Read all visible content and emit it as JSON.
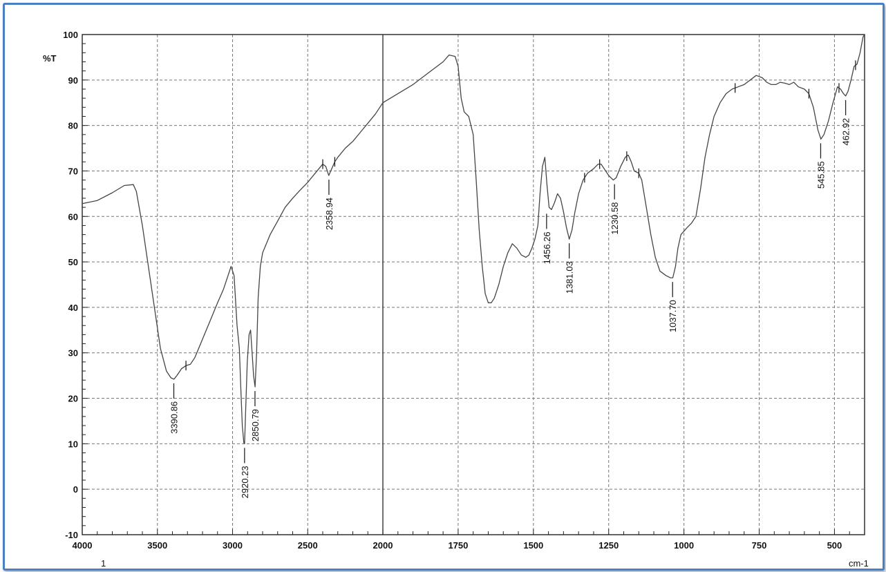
{
  "chart_data": {
    "type": "line",
    "ylabel": "%T",
    "xlabel": "cm-1",
    "x_corner_label": "1",
    "xlim": [
      4000,
      400
    ],
    "ylim": [
      -10,
      100
    ],
    "x_ticks": [
      4000,
      3500,
      3000,
      2500,
      2000,
      1750,
      1500,
      1250,
      1000,
      750,
      500
    ],
    "y_ticks": [
      -10,
      0,
      10,
      20,
      30,
      40,
      50,
      60,
      70,
      80,
      90,
      100
    ],
    "grid": true,
    "line_color": "#444444",
    "series": [
      {
        "points": [
          [
            4000,
            62.8
          ],
          [
            3900,
            63.5
          ],
          [
            3800,
            65.2
          ],
          [
            3720,
            66.8
          ],
          [
            3660,
            67.0
          ],
          [
            3640,
            65.5
          ],
          [
            3600,
            58
          ],
          [
            3560,
            49
          ],
          [
            3520,
            40
          ],
          [
            3480,
            31
          ],
          [
            3440,
            26
          ],
          [
            3410,
            24.5
          ],
          [
            3390,
            24.2
          ],
          [
            3370,
            25
          ],
          [
            3340,
            26.5
          ],
          [
            3310,
            27.2
          ],
          [
            3280,
            27.5
          ],
          [
            3250,
            29
          ],
          [
            3200,
            33
          ],
          [
            3150,
            37
          ],
          [
            3100,
            41
          ],
          [
            3060,
            44
          ],
          [
            3030,
            47
          ],
          [
            3010,
            49
          ],
          [
            2990,
            47
          ],
          [
            2970,
            36
          ],
          [
            2955,
            31
          ],
          [
            2945,
            22
          ],
          [
            2935,
            14
          ],
          [
            2925,
            10.2
          ],
          [
            2920,
            10
          ],
          [
            2912,
            18
          ],
          [
            2902,
            28
          ],
          [
            2890,
            34
          ],
          [
            2880,
            35
          ],
          [
            2870,
            30
          ],
          [
            2860,
            25
          ],
          [
            2850,
            22.5
          ],
          [
            2840,
            30
          ],
          [
            2830,
            42
          ],
          [
            2815,
            49
          ],
          [
            2800,
            52
          ],
          [
            2750,
            56
          ],
          [
            2700,
            59
          ],
          [
            2650,
            62
          ],
          [
            2600,
            64
          ],
          [
            2550,
            65.8
          ],
          [
            2500,
            67.5
          ],
          [
            2450,
            69.5
          ],
          [
            2400,
            71.5
          ],
          [
            2380,
            71
          ],
          [
            2360,
            69
          ],
          [
            2340,
            70.5
          ],
          [
            2320,
            72
          ],
          [
            2300,
            73
          ],
          [
            2250,
            75
          ],
          [
            2200,
            76.5
          ],
          [
            2150,
            78.5
          ],
          [
            2100,
            80.5
          ],
          [
            2050,
            82.5
          ],
          [
            2000,
            85
          ],
          [
            1950,
            87
          ],
          [
            1900,
            89
          ],
          [
            1850,
            91.5
          ],
          [
            1800,
            94
          ],
          [
            1780,
            95.5
          ],
          [
            1760,
            95.2
          ],
          [
            1750,
            93
          ],
          [
            1740,
            86
          ],
          [
            1730,
            83
          ],
          [
            1715,
            82
          ],
          [
            1700,
            78
          ],
          [
            1690,
            68
          ],
          [
            1680,
            57
          ],
          [
            1670,
            49
          ],
          [
            1660,
            43
          ],
          [
            1650,
            41
          ],
          [
            1640,
            41
          ],
          [
            1630,
            42
          ],
          [
            1615,
            45
          ],
          [
            1600,
            49
          ],
          [
            1585,
            52
          ],
          [
            1570,
            54
          ],
          [
            1555,
            53
          ],
          [
            1540,
            51.5
          ],
          [
            1525,
            51
          ],
          [
            1515,
            51.5
          ],
          [
            1505,
            53
          ],
          [
            1495,
            55
          ],
          [
            1485,
            58
          ],
          [
            1478,
            65
          ],
          [
            1470,
            71
          ],
          [
            1462,
            73
          ],
          [
            1455,
            67
          ],
          [
            1448,
            62
          ],
          [
            1440,
            61.5
          ],
          [
            1430,
            63
          ],
          [
            1420,
            65
          ],
          [
            1410,
            64
          ],
          [
            1400,
            61
          ],
          [
            1390,
            57.5
          ],
          [
            1381,
            55
          ],
          [
            1372,
            57
          ],
          [
            1362,
            61
          ],
          [
            1350,
            65
          ],
          [
            1335,
            68
          ],
          [
            1320,
            69.5
          ],
          [
            1300,
            70.5
          ],
          [
            1285,
            71.5
          ],
          [
            1275,
            71.5
          ],
          [
            1265,
            70.5
          ],
          [
            1250,
            69
          ],
          [
            1235,
            68
          ],
          [
            1225,
            68.5
          ],
          [
            1210,
            71
          ],
          [
            1195,
            73
          ],
          [
            1185,
            73.5
          ],
          [
            1175,
            72
          ],
          [
            1165,
            70
          ],
          [
            1150,
            69.5
          ],
          [
            1140,
            68
          ],
          [
            1125,
            62
          ],
          [
            1110,
            56
          ],
          [
            1095,
            51
          ],
          [
            1080,
            48
          ],
          [
            1060,
            47
          ],
          [
            1045,
            46.5
          ],
          [
            1037,
            46.5
          ],
          [
            1028,
            49
          ],
          [
            1020,
            53
          ],
          [
            1010,
            56
          ],
          [
            990,
            57.5
          ],
          [
            975,
            58.5
          ],
          [
            960,
            60
          ],
          [
            945,
            66
          ],
          [
            930,
            73
          ],
          [
            915,
            78
          ],
          [
            900,
            82
          ],
          [
            880,
            85
          ],
          [
            860,
            87
          ],
          [
            840,
            88
          ],
          [
            820,
            88.5
          ],
          [
            800,
            89
          ],
          [
            780,
            90
          ],
          [
            760,
            91
          ],
          [
            740,
            90.5
          ],
          [
            725,
            89.5
          ],
          [
            710,
            89
          ],
          [
            695,
            89
          ],
          [
            680,
            89.5
          ],
          [
            665,
            89.3
          ],
          [
            650,
            89
          ],
          [
            635,
            89.5
          ],
          [
            620,
            88.5
          ],
          [
            600,
            88
          ],
          [
            585,
            87
          ],
          [
            570,
            84
          ],
          [
            555,
            79
          ],
          [
            545,
            77
          ],
          [
            535,
            78
          ],
          [
            520,
            81
          ],
          [
            505,
            85
          ],
          [
            490,
            88.5
          ],
          [
            480,
            88
          ],
          [
            470,
            87
          ],
          [
            463,
            86.5
          ],
          [
            455,
            87.5
          ],
          [
            445,
            90
          ],
          [
            435,
            93
          ],
          [
            425,
            93.5
          ],
          [
            415,
            96
          ],
          [
            405,
            99.5
          ],
          [
            400,
            100
          ]
        ]
      }
    ],
    "annotations": [
      {
        "x": 3390.86,
        "label": "3390.86",
        "y": 24.2
      },
      {
        "x": 2920.23,
        "label": "2920.23",
        "y": 10
      },
      {
        "x": 2850.79,
        "label": "2850.79",
        "y": 22.5
      },
      {
        "x": 2358.94,
        "label": "2358.94",
        "y": 69
      },
      {
        "x": 1456.26,
        "label": "1456.26",
        "y": 61.5
      },
      {
        "x": 1381.03,
        "label": "1381.03",
        "y": 55
      },
      {
        "x": 1230.58,
        "label": "1230.58",
        "y": 68
      },
      {
        "x": 1037.7,
        "label": "1037.70",
        "y": 46.5
      },
      {
        "x": 545.85,
        "label": "545.85",
        "y": 77
      },
      {
        "x": 462.92,
        "label": "462.92",
        "y": 86.5
      }
    ],
    "secondary_markers": [
      3310,
      2400,
      2320,
      1330,
      1280,
      1190,
      1150,
      830,
      585,
      485,
      430
    ]
  }
}
